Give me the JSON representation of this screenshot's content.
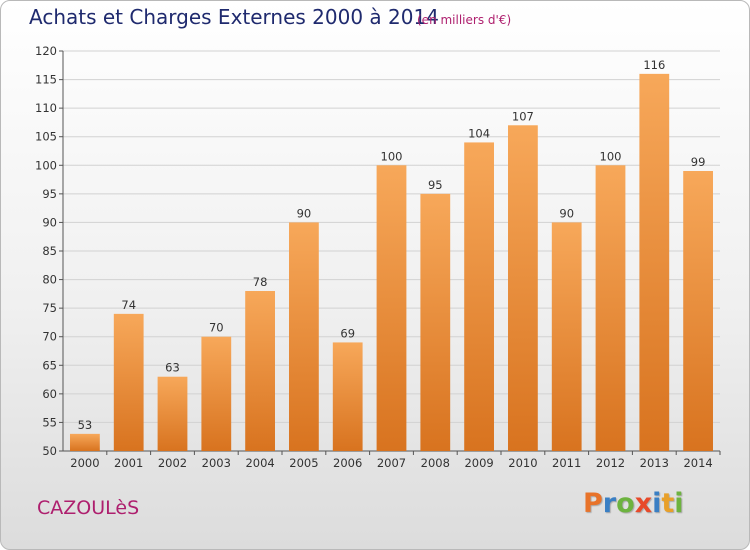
{
  "header": {
    "title": "Achats et Charges Externes 2000 à 2014",
    "subtitle": "(en milliers d'€)"
  },
  "footer": {
    "commune": "CAZOULèS",
    "brand": "Proxiti",
    "brand_colors": [
      "#e8732a",
      "#3a7fc4",
      "#6db33f",
      "#e84a2a",
      "#3a7fc4",
      "#e8a02a",
      "#6db33f"
    ]
  },
  "chart_data": {
    "type": "bar",
    "categories": [
      "2000",
      "2001",
      "2002",
      "2003",
      "2004",
      "2005",
      "2006",
      "2007",
      "2008",
      "2009",
      "2010",
      "2011",
      "2012",
      "2013",
      "2014"
    ],
    "values": [
      53,
      74,
      63,
      70,
      78,
      90,
      69,
      100,
      95,
      104,
      107,
      90,
      100,
      116,
      99
    ],
    "data_labels": [
      "53",
      "74",
      "63",
      "70",
      "78",
      "90",
      "69",
      "100",
      "95",
      "104",
      "107",
      "90",
      "100",
      "116",
      "99"
    ],
    "yticks": [
      50,
      55,
      60,
      65,
      70,
      75,
      80,
      85,
      90,
      95,
      100,
      105,
      110,
      115,
      120
    ],
    "ylim": [
      50,
      120
    ],
    "bar_color_light": "#f7a85a",
    "bar_color_dark": "#d8731f",
    "grid": "horizontal"
  }
}
